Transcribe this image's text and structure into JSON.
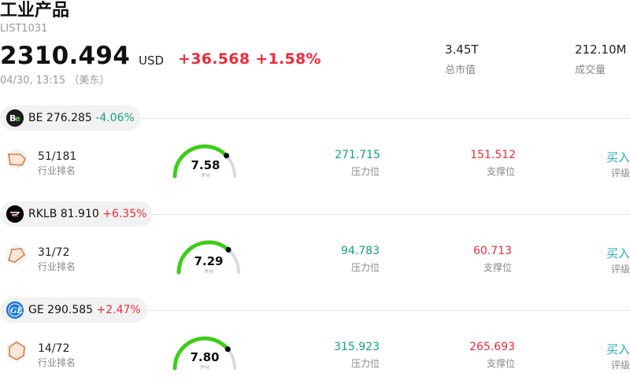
{
  "header": {
    "title": "工业产品",
    "code": "LIST1031",
    "price": "2310.494",
    "currency": "USD",
    "change": "+36.568 +1.58%",
    "time": "04/30, 13:15 （美东）",
    "market_cap_value": "3.45T",
    "market_cap_label": "总市值",
    "volume_value": "212.10M",
    "volume_label": "成交量"
  },
  "colors": {
    "up": "#ee2b3c",
    "down": "#14a085",
    "gauge_green": "#3dcd1a",
    "gauge_track": "#dadae6",
    "radar_orange": "#d9793a",
    "rating": "#27b3a8"
  },
  "stocks": [
    {
      "logo_icon": "bloom-energy-logo",
      "ticker": "BE",
      "price": "276.285",
      "change": "-4.06%",
      "rank_value": "51/181",
      "rank_label": "行业排名",
      "score": "7.58",
      "score_level": 0.758,
      "score_label": "评分",
      "resistance": "271.715",
      "resistance_label": "压力位",
      "support": "151.512",
      "support_label": "支撑位",
      "rating": "买入",
      "rating_label": "评级"
    },
    {
      "logo_icon": "rocket-lab-logo",
      "ticker": "RKLB",
      "price": "81.910",
      "change": "+6.35%",
      "rank_value": "31/72",
      "rank_label": "行业排名",
      "score": "7.29",
      "score_level": 0.729,
      "score_label": "评分",
      "resistance": "94.783",
      "resistance_label": "压力位",
      "support": "60.713",
      "support_label": "支撑位",
      "rating": "买入",
      "rating_label": "评级"
    },
    {
      "logo_icon": "ge-logo",
      "ticker": "GE",
      "price": "290.585",
      "change": "+2.47%",
      "rank_value": "14/72",
      "rank_label": "行业排名",
      "score": "7.80",
      "score_level": 0.78,
      "score_label": "评分",
      "resistance": "315.923",
      "resistance_label": "压力位",
      "support": "265.693",
      "support_label": "支撑位",
      "rating": "买入",
      "rating_label": "评级"
    }
  ]
}
